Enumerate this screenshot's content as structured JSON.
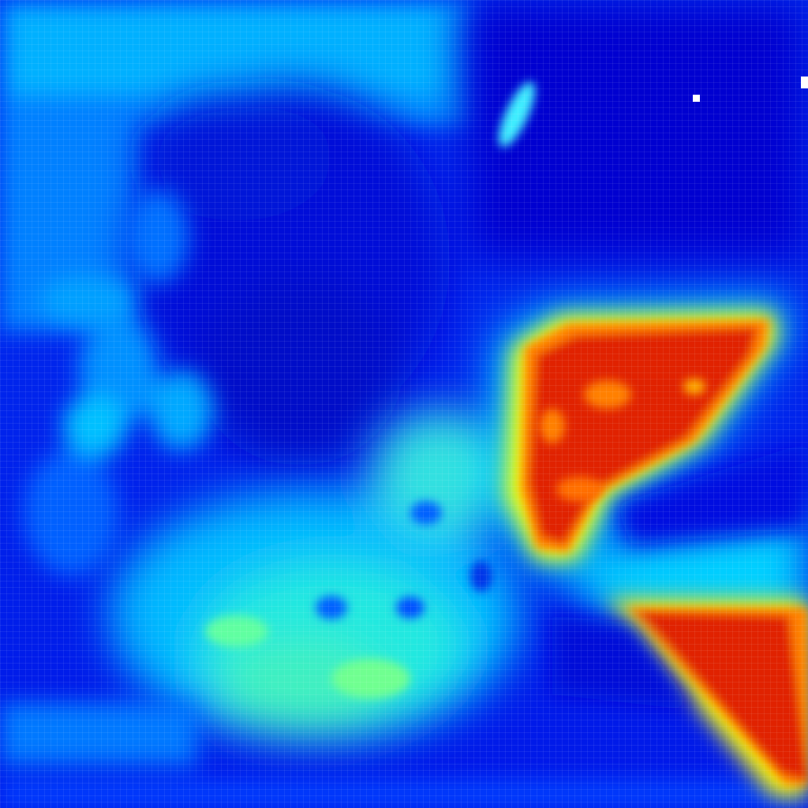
{
  "image": {
    "kind": "heatmap-overlay",
    "colormap": "jet",
    "palette": {
      "deep_blue": "#0000c8",
      "blue": "#0020f0",
      "light_blue": "#00a8ff",
      "cyan": "#00e0ff",
      "green": "#60ff90",
      "yellow": "#ffff00",
      "orange": "#ff8000",
      "red": "#e02000"
    },
    "hotspots": [
      {
        "name": "right-center-hotspot",
        "peak_level": 1.0
      },
      {
        "name": "bottom-right-hotspot",
        "peak_level": 1.0
      }
    ]
  }
}
